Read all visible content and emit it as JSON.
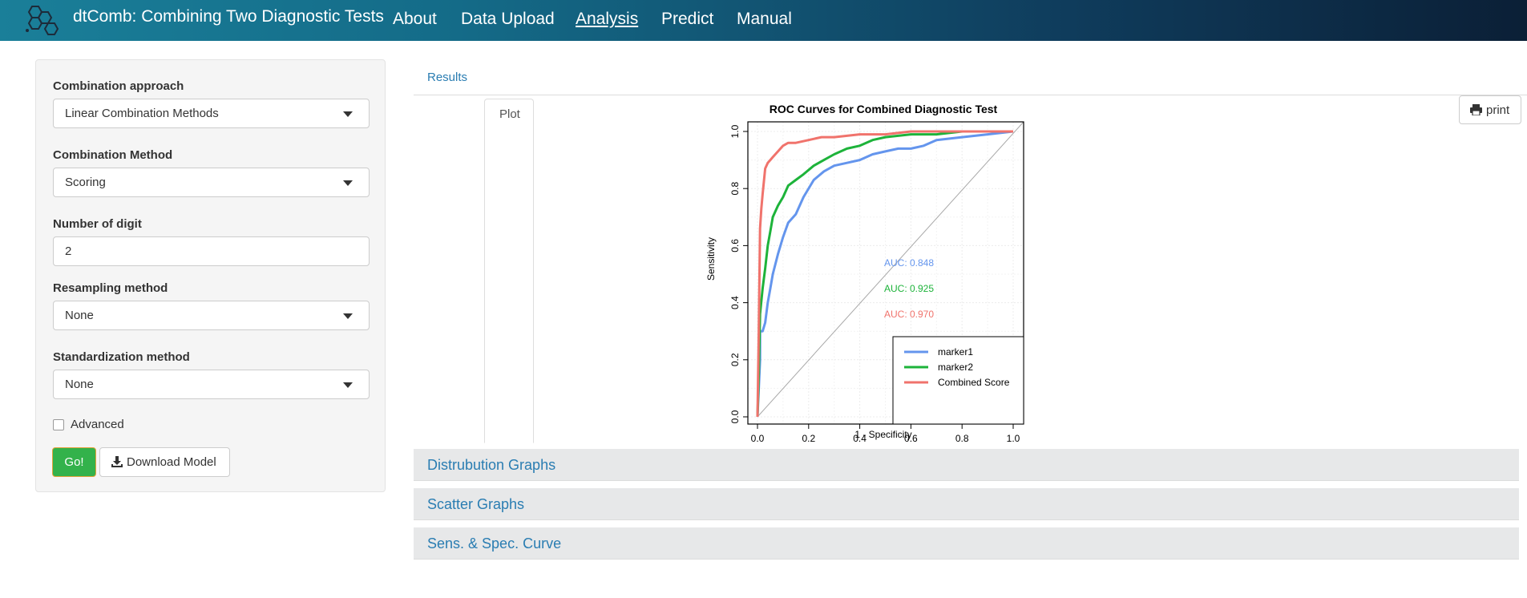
{
  "nav": {
    "brand": "dtComb: Combining Two Diagnostic Tests",
    "links": [
      "About",
      "Data Upload",
      "Analysis",
      "Predict",
      "Manual"
    ],
    "active": "Analysis"
  },
  "sidebar": {
    "combination_approach": {
      "label": "Combination approach",
      "value": "Linear Combination Methods"
    },
    "combination_method": {
      "label": "Combination Method",
      "value": "Scoring"
    },
    "digits": {
      "label": "Number of digit",
      "value": "2"
    },
    "resampling": {
      "label": "Resampling method",
      "value": "None"
    },
    "standardization": {
      "label": "Standardization method",
      "value": "None"
    },
    "advanced_label": "Advanced",
    "advanced_checked": false,
    "go_label": "Go!",
    "download_label": "Download Model"
  },
  "tabs": {
    "results": "Results",
    "plot": "Plot",
    "active": "Plot"
  },
  "print_label": "print",
  "panels": [
    "Distrubution Graphs",
    "Scatter Graphs",
    "Sens. & Spec. Curve"
  ],
  "colors": {
    "marker1": "#6495ED",
    "marker2": "#1DB33A",
    "combined": "#F0736C",
    "accent": "#2a7db2",
    "go": "#33b24b"
  },
  "chart_data": {
    "type": "line",
    "title": "ROC Curves for Combined Diagnostic Test",
    "xlabel": "1 - Specificity",
    "ylabel": "Sensitivity",
    "xlim": [
      0,
      1
    ],
    "ylim": [
      0,
      1
    ],
    "xticks": [
      "0.0",
      "0.2",
      "0.4",
      "0.6",
      "0.8",
      "1.0"
    ],
    "yticks": [
      "0.0",
      "0.2",
      "0.4",
      "0.6",
      "0.8",
      "1.0"
    ],
    "grid": true,
    "diagonal": true,
    "legend_position": "bottom-right",
    "series": [
      {
        "name": "marker1",
        "auc_label": "AUC: 0.848",
        "x": [
          0,
          0.005,
          0.01,
          0.01,
          0.02,
          0.03,
          0.04,
          0.05,
          0.06,
          0.08,
          0.1,
          0.12,
          0.15,
          0.18,
          0.22,
          0.26,
          0.3,
          0.35,
          0.4,
          0.45,
          0.5,
          0.55,
          0.6,
          0.65,
          0.7,
          0.8,
          0.9,
          1
        ],
        "y": [
          0,
          0.1,
          0.2,
          0.3,
          0.3,
          0.33,
          0.4,
          0.45,
          0.5,
          0.57,
          0.63,
          0.68,
          0.71,
          0.77,
          0.83,
          0.86,
          0.88,
          0.89,
          0.9,
          0.92,
          0.93,
          0.94,
          0.94,
          0.95,
          0.97,
          0.98,
          0.99,
          1
        ]
      },
      {
        "name": "marker2",
        "auc_label": "AUC: 0.925",
        "x": [
          0,
          0.005,
          0.01,
          0.02,
          0.03,
          0.04,
          0.05,
          0.06,
          0.08,
          0.1,
          0.12,
          0.15,
          0.18,
          0.22,
          0.26,
          0.3,
          0.35,
          0.4,
          0.45,
          0.5,
          0.6,
          0.7,
          0.8,
          0.9,
          1
        ],
        "y": [
          0,
          0.15,
          0.36,
          0.45,
          0.52,
          0.6,
          0.65,
          0.7,
          0.74,
          0.77,
          0.81,
          0.83,
          0.85,
          0.88,
          0.9,
          0.92,
          0.94,
          0.95,
          0.97,
          0.98,
          0.99,
          0.99,
          1,
          1,
          1
        ]
      },
      {
        "name": "Combined Score",
        "auc_label": "AUC: 0.970",
        "x": [
          0,
          0.005,
          0.01,
          0.015,
          0.02,
          0.03,
          0.04,
          0.05,
          0.06,
          0.08,
          0.1,
          0.12,
          0.15,
          0.2,
          0.25,
          0.3,
          0.4,
          0.5,
          0.6,
          0.8,
          1
        ],
        "y": [
          0,
          0.3,
          0.66,
          0.73,
          0.78,
          0.87,
          0.89,
          0.9,
          0.91,
          0.93,
          0.95,
          0.96,
          0.96,
          0.97,
          0.98,
          0.98,
          0.99,
          0.99,
          1,
          1,
          1
        ]
      }
    ]
  }
}
